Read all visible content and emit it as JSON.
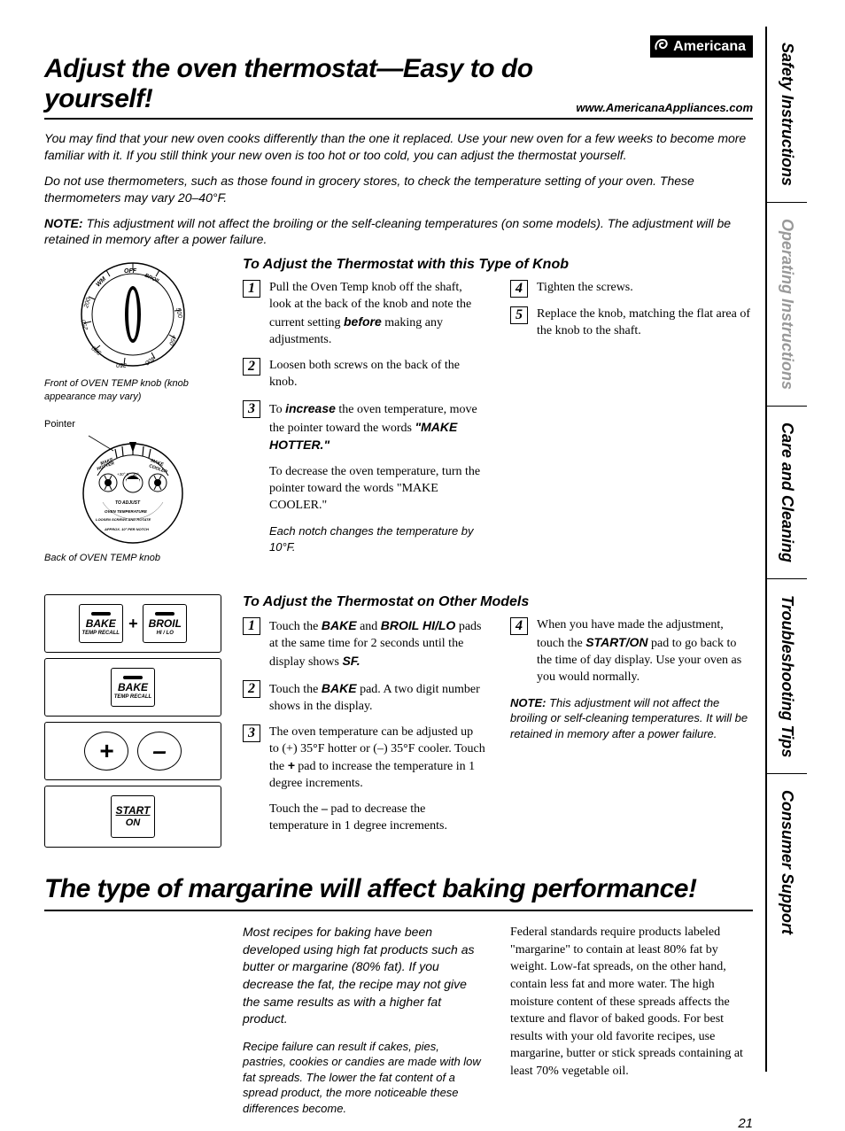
{
  "sidebar": {
    "tabs": [
      "Safety Instructions",
      "Operating Instructions",
      "Care and Cleaning",
      "Troubleshooting Tips",
      "Consumer Support"
    ],
    "active_color": "#000000",
    "inactive_color": "#999999",
    "active_indices": [
      0,
      2,
      3,
      4
    ]
  },
  "brand": {
    "name": "Americana",
    "url": "www.AmericanaAppliances.com"
  },
  "title1": "Adjust the oven thermostat—Easy to do yourself!",
  "intro1": "You may find that your new oven cooks differently than the one it replaced. Use your new oven for a few weeks to become more familiar with it. If you still think your new oven is too hot or too cold, you can adjust the thermostat yourself.",
  "intro2": "Do not use thermometers, such as those found in grocery stores, to check the temperature setting of your oven. These thermometers may vary 20–40°F.",
  "intro3_label": "NOTE:",
  "intro3": "This adjustment will not affect the broiling or the self-cleaning temperatures (on some models). The adjustment will be retained in memory after a power failure.",
  "knob_section": {
    "heading": "To Adjust the Thermostat with this Type of Knob",
    "fig1_caption": "Front of OVEN TEMP knob (knob appearance may vary)",
    "fig2_label": "Pointer",
    "fig2_caption": "Back of OVEN TEMP knob",
    "knob_labels": {
      "off": "OFF",
      "broil": "BROIL",
      "wm": "WM",
      "ticks": [
        "500",
        "450",
        "400",
        "350",
        "300",
        "250",
        "200"
      ]
    },
    "back_labels": {
      "hotter": "MAKE HOTTER",
      "cooler": "MAKE COOLER",
      "deg": "+30° 0° -30°",
      "adj": "TO ADJUST",
      "temp": "OVEN TEMPERATURE",
      "loosen": "LOOSEN SCREWS AND ROTATE",
      "approx": "APPROX. 10° PER NOTCH"
    },
    "steps_left": [
      {
        "n": "1",
        "html": "Pull the Oven Temp knob off the shaft, look at the back of the knob and note the current setting <span class='sb'>before</span> making any adjustments."
      },
      {
        "n": "2",
        "html": "Loosen both screws on the back of the knob."
      },
      {
        "n": "3",
        "html": "To <span class='sb'>increase</span> the oven temperature, move the pointer toward the words <span class='sb'>\"MAKE HOTTER.\"</span>"
      }
    ],
    "sub1": "To <span class='sb'>decrease</span> the oven temperature, turn the pointer toward the words <span class='sb'>\"MAKE COOLER.\"</span>",
    "sub2": "Each notch changes the temperature by 10°F.",
    "steps_right": [
      {
        "n": "4",
        "html": "Tighten the screws."
      },
      {
        "n": "5",
        "html": "Replace the knob, matching the flat area of the knob to the shaft."
      }
    ]
  },
  "pad_section": {
    "heading": "To Adjust the Thermostat on Other Models",
    "pads": {
      "bake": "BAKE",
      "temp_recall": "TEMP RECALL",
      "broil": "BROIL",
      "hilo": "HI / LO",
      "start": "START",
      "on": "ON",
      "plus": "+",
      "minus": "–"
    },
    "steps_left": [
      {
        "n": "1",
        "html": "Touch the <span class='sb'>BAKE</span> and <span class='sb'>BROIL HI/LO</span> pads at the same time for 2 seconds until the display shows <span class='sb'>SF.</span>"
      },
      {
        "n": "2",
        "html": "Touch the <span class='sb'>BAKE</span> pad. A two digit number shows in the display."
      },
      {
        "n": "3",
        "html": "The oven temperature can be adjusted up to (+) 35°F hotter or (–) 35°F cooler. Touch the <span class='sb'>+</span> pad to increase the temperature in 1 degree increments."
      }
    ],
    "sub1": "Touch the <b>–</b> pad to decrease the temperature in 1 degree increments.",
    "steps_right": [
      {
        "n": "4",
        "html": "When you have made the adjustment, touch the <span class='sb'>START/ON</span> pad to go back to the time of day display. Use your oven as you would normally."
      }
    ],
    "note_label": "NOTE:",
    "note": "This adjustment will not affect the broiling or self-cleaning temperatures. It will be retained in memory after a power failure."
  },
  "title2": "The type of margarine will affect baking performance!",
  "marg": {
    "p1": "Most recipes for baking have been developed using high fat products such as butter or margarine (80% fat). If you decrease the fat, the recipe may not give the same results as with a higher fat product.",
    "p2": "Recipe failure can result if cakes, pies, pastries, cookies or candies are made with low fat spreads. The lower the fat content of a spread product, the more noticeable these differences become.",
    "p3": "Federal standards require products labeled \"margarine\" to contain at least 80% fat by weight. Low-fat spreads, on the other hand, contain less fat and more water. The high moisture content of these spreads affects the texture and flavor of baked goods. For best results with your old favorite recipes, use margarine, butter or stick spreads containing at least 70% vegetable oil."
  },
  "page_number": "21",
  "colors": {
    "text": "#000000",
    "bg": "#ffffff",
    "rule": "#000000"
  }
}
